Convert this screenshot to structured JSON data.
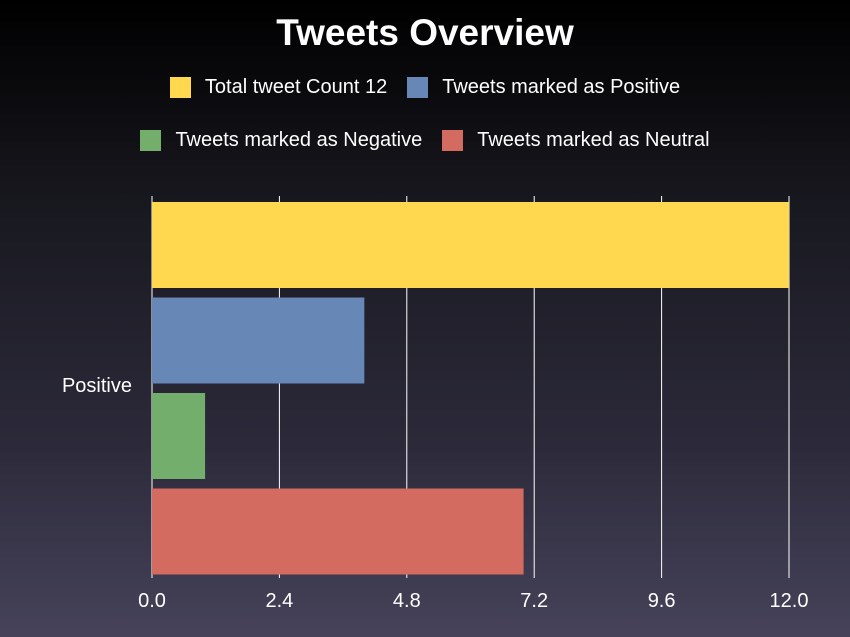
{
  "chart_data": {
    "type": "bar",
    "orientation": "horizontal",
    "title": "Tweets Overview",
    "categories": [
      "Positive"
    ],
    "series": [
      {
        "name": "Total tweet Count 12",
        "values": [
          12
        ],
        "color": "#ffd84f"
      },
      {
        "name": "Tweets marked as Positive",
        "values": [
          4
        ],
        "color": "#6787b6"
      },
      {
        "name": "Tweets marked as Negative",
        "values": [
          1
        ],
        "color": "#74ae6c"
      },
      {
        "name": "Tweets marked as Neutral",
        "values": [
          7
        ],
        "color": "#d36b60"
      }
    ],
    "x_ticks": [
      "0.0",
      "2.4",
      "4.8",
      "7.2",
      "9.6",
      "12.0"
    ],
    "xlim": [
      0,
      12
    ],
    "grid": "vertical",
    "legend_placement": "top-center"
  }
}
